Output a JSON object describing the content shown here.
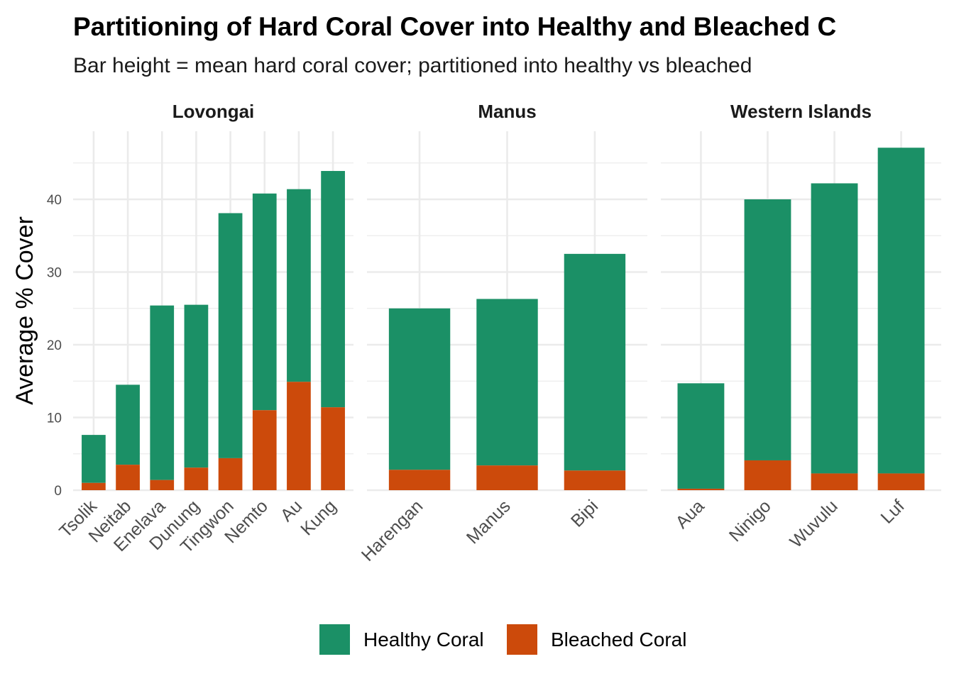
{
  "chart_data": {
    "type": "bar",
    "stacked": true,
    "title": "Partitioning of Hard Coral Cover into Healthy and Bleached C",
    "subtitle": "Bar height = mean hard coral cover; partitioned into healthy vs bleached",
    "ylabel": "Average % Cover",
    "xlabel": "",
    "ylim": [
      0,
      49
    ],
    "yticks": [
      "0",
      "10",
      "20",
      "30",
      "40"
    ],
    "grid": true,
    "legend_position": "bottom",
    "colors": {
      "healthy": "#1b9066",
      "bleached": "#cc4a0b"
    },
    "series_names": [
      "Healthy Coral",
      "Bleached Coral"
    ],
    "panels": [
      {
        "name": "Lovongai",
        "categories": [
          "Tsolik",
          "Neitab",
          "Enelava",
          "Dunung",
          "Tingwon",
          "Nemto",
          "Au",
          "Kung"
        ],
        "healthy": [
          6.6,
          11.0,
          24.0,
          22.4,
          33.7,
          29.8,
          26.5,
          32.5
        ],
        "bleached": [
          1.0,
          3.5,
          1.4,
          3.1,
          4.4,
          11.0,
          14.9,
          11.4
        ]
      },
      {
        "name": "Manus",
        "categories": [
          "Harengan",
          "Manus",
          "Bipi"
        ],
        "healthy": [
          22.2,
          22.9,
          29.8
        ],
        "bleached": [
          2.8,
          3.4,
          2.7
        ]
      },
      {
        "name": "Western Islands",
        "categories": [
          "Aua",
          "Ninigo",
          "Wuvulu",
          "Luf"
        ],
        "healthy": [
          14.5,
          35.9,
          39.9,
          44.8
        ],
        "bleached": [
          0.2,
          4.1,
          2.3,
          2.3
        ]
      }
    ]
  }
}
